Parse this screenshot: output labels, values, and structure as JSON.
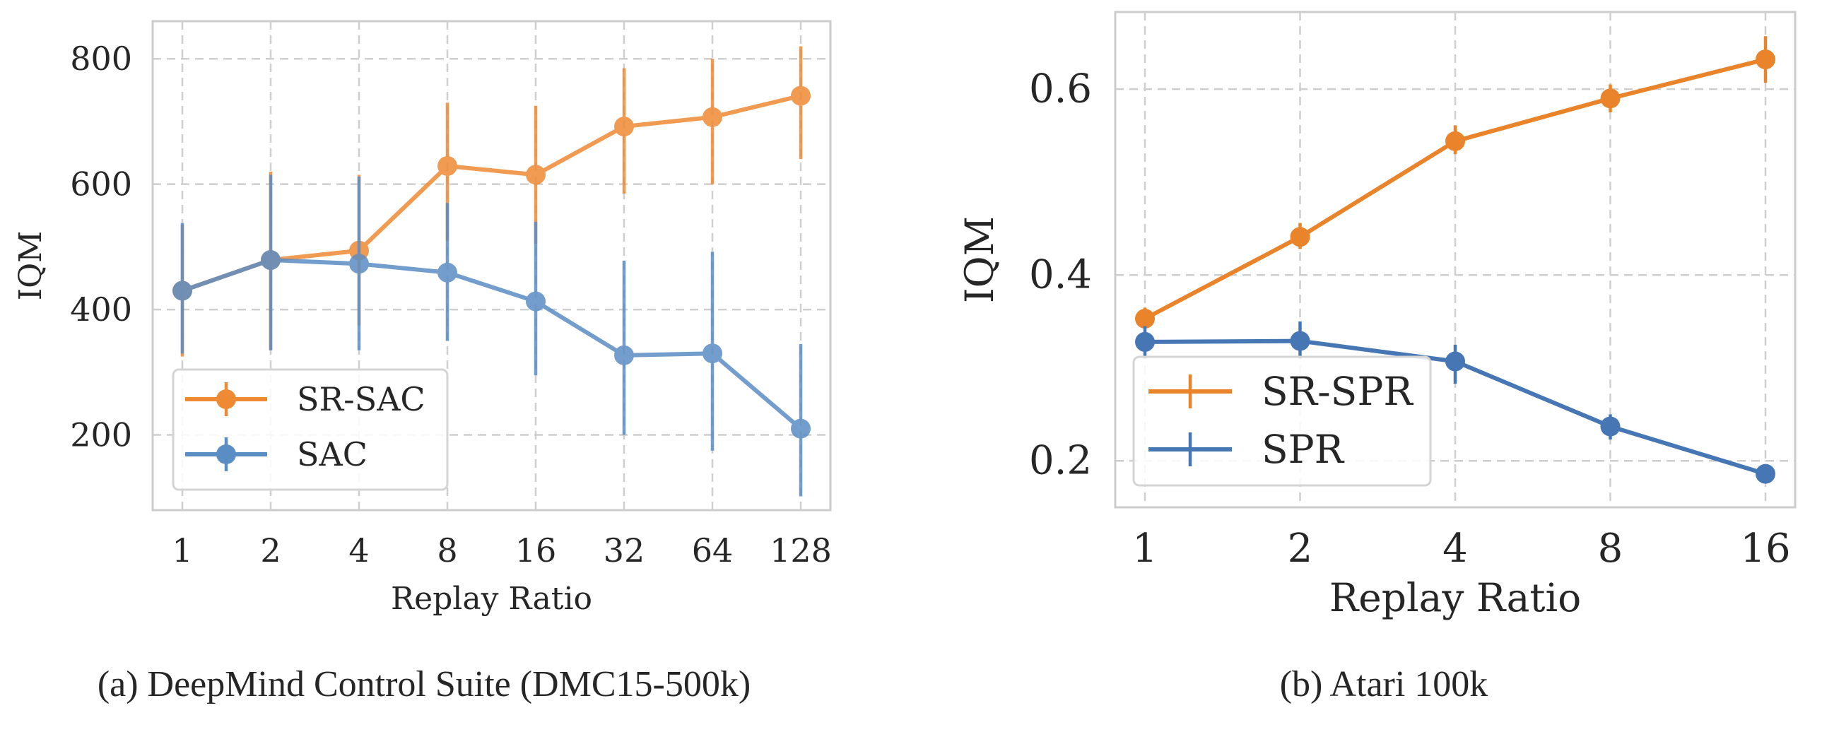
{
  "chart_data": [
    {
      "type": "line",
      "caption": "(a) DeepMind Control Suite (DMC15-500k)",
      "xlabel": "Replay Ratio",
      "ylabel": "IQM",
      "categories": [
        "1",
        "2",
        "4",
        "8",
        "16",
        "32",
        "64",
        "128"
      ],
      "ylim": [
        80,
        860
      ],
      "yticks": [
        "200",
        "400",
        "600",
        "800"
      ],
      "grid": true,
      "legend_position": "lower-left",
      "series": [
        {
          "name": "SR-SAC",
          "color": "#EE8A33",
          "values": [
            430,
            479,
            494,
            629,
            615,
            692,
            707,
            741
          ],
          "err_low": [
            325,
            335,
            375,
            510,
            505,
            585,
            600,
            640
          ],
          "err_high": [
            535,
            620,
            615,
            730,
            725,
            785,
            800,
            820
          ]
        },
        {
          "name": "SAC",
          "color": "#5A8DC4",
          "values": [
            430,
            479,
            473,
            459,
            413,
            327,
            330,
            210
          ],
          "err_low": [
            330,
            335,
            335,
            350,
            295,
            200,
            175,
            102
          ],
          "err_high": [
            538,
            615,
            612,
            570,
            540,
            478,
            492,
            345
          ]
        }
      ]
    },
    {
      "type": "line",
      "caption": "(b) Atari 100k",
      "xlabel": "Replay Ratio",
      "ylabel": "IQM",
      "categories": [
        "1",
        "2",
        "4",
        "8",
        "16"
      ],
      "ylim": [
        0.15,
        0.683
      ],
      "yticks": [
        "0.2",
        "0.4",
        "0.6"
      ],
      "grid": true,
      "legend_position": "lower-left",
      "series": [
        {
          "name": "SR-SPR",
          "color": "#E9842B",
          "values": [
            0.353,
            0.441,
            0.544,
            0.59,
            0.632
          ],
          "err_low": [
            0.342,
            0.428,
            0.53,
            0.575,
            0.607
          ],
          "err_high": [
            0.365,
            0.456,
            0.561,
            0.605,
            0.657
          ]
        },
        {
          "name": "SPR",
          "color": "#4676B4",
          "values": [
            0.328,
            0.329,
            0.307,
            0.237,
            0.186
          ],
          "err_low": [
            0.31,
            0.31,
            0.283,
            0.223,
            0.178
          ],
          "err_high": [
            0.345,
            0.35,
            0.325,
            0.25,
            0.192
          ]
        }
      ]
    }
  ]
}
